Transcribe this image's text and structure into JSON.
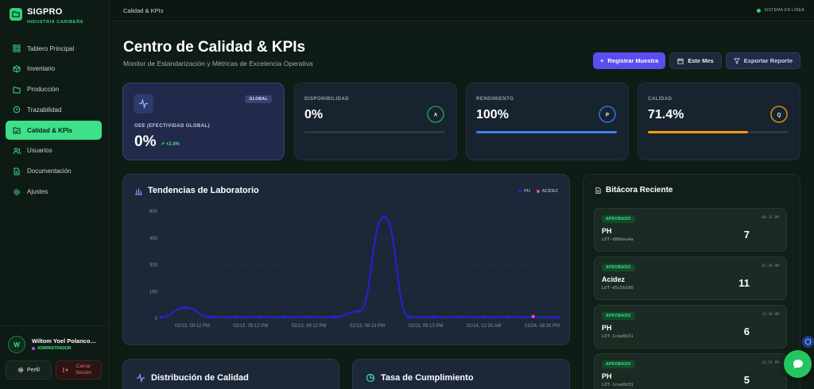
{
  "brand": {
    "name": "SIGPRO",
    "subtitle": "INDUSTRIA CARIBEÑA"
  },
  "sidebar": {
    "items": [
      {
        "label": "Tablero Principal",
        "icon": "dashboard-icon"
      },
      {
        "label": "Inventario",
        "icon": "box-icon"
      },
      {
        "label": "Producción",
        "icon": "folder-icon"
      },
      {
        "label": "Trazabilidad",
        "icon": "history-icon"
      },
      {
        "label": "Calidad & KPIs",
        "icon": "check-folder-icon",
        "active": true
      },
      {
        "label": "Usuarios",
        "icon": "users-icon"
      },
      {
        "label": "Documentación",
        "icon": "document-icon"
      },
      {
        "label": "Ajustes",
        "icon": "gear-icon"
      }
    ]
  },
  "user": {
    "initial": "W",
    "name": "Wiltom Yoel Polanco…",
    "role": "ADMINISTRADOR",
    "profile_label": "Perfil",
    "logout_label": "Cerrar Sesión"
  },
  "topbar": {
    "breadcrumb": "Calidad & KPIs",
    "status": "SISTEMA EN LÍNEA"
  },
  "header": {
    "title": "Centro de Calidad & KPIs",
    "subtitle": "Monitor de Estandarización y Métricas de Excelencia Operativa",
    "register_label": "Registrar Muestra",
    "period_label": "Este Mes",
    "export_label": "Exportar Reporte"
  },
  "kpis": {
    "oee": {
      "badge": "GLOBAL",
      "label": "OEE (EFECTIVIDAD GLOBAL)",
      "value": "0%",
      "delta": "+2.4%"
    },
    "cards": [
      {
        "label": "DISPONIBILIDAD",
        "value": "0%",
        "ring_letter": "A",
        "progress": 0,
        "color": "#22c55e"
      },
      {
        "label": "RENDIMIENTO",
        "value": "100%",
        "ring_letter": "P",
        "progress": 1.0,
        "color": "#3b82f6"
      },
      {
        "label": "CALIDAD",
        "value": "71.4%",
        "ring_letter": "Q",
        "progress": 0.714,
        "color": "#f59e0b"
      }
    ]
  },
  "chart_panel": {
    "title": "Tendencias de Laboratorio"
  },
  "chart_data": {
    "type": "line",
    "title": "Tendencias de Laboratorio",
    "ylim": [
      0,
      600
    ],
    "yticks": [
      0,
      150,
      300,
      450,
      600
    ],
    "x_tick_labels": [
      "02/13, 09:12 PM",
      "02/13, 09:12 PM",
      "02/13, 09:12 PM",
      "02/13, 09:13 PM",
      "02/13, 09:13 PM",
      "02/14, 12:30 AM",
      "02/24, 08:35 PM"
    ],
    "series": [
      {
        "name": "PH",
        "color": "#2222dd",
        "values": [
          6,
          60,
          7,
          7,
          7,
          7,
          7,
          7,
          40,
          570,
          7,
          7,
          7,
          7,
          7,
          7,
          6
        ]
      },
      {
        "name": "ACIDEZ",
        "color": "#ec4899",
        "point_index": 15,
        "values": [
          11
        ]
      }
    ]
  },
  "log_panel": {
    "title": "Bitácora Reciente",
    "items": [
      {
        "status": "APROBADO",
        "time": "08:15 PM",
        "param": "PH",
        "lot": "LOT-d88dea4a",
        "value": "7"
      },
      {
        "status": "APROBADO",
        "time": "01:18 AM",
        "param": "Acidez",
        "lot": "LOT-d5c5b180",
        "value": "11"
      },
      {
        "status": "APROBADO",
        "time": "12:38 AM",
        "param": "PH",
        "lot": "LOT-1cee6b31",
        "value": "6"
      },
      {
        "status": "APROBADO",
        "time": "11:51 PM",
        "param": "PH",
        "lot": "LOT-1cee6b31",
        "value": "5"
      }
    ]
  },
  "bottom": {
    "distribution_title": "Distribución de Calidad",
    "compliance_title": "Tasa de Cumplimiento"
  }
}
